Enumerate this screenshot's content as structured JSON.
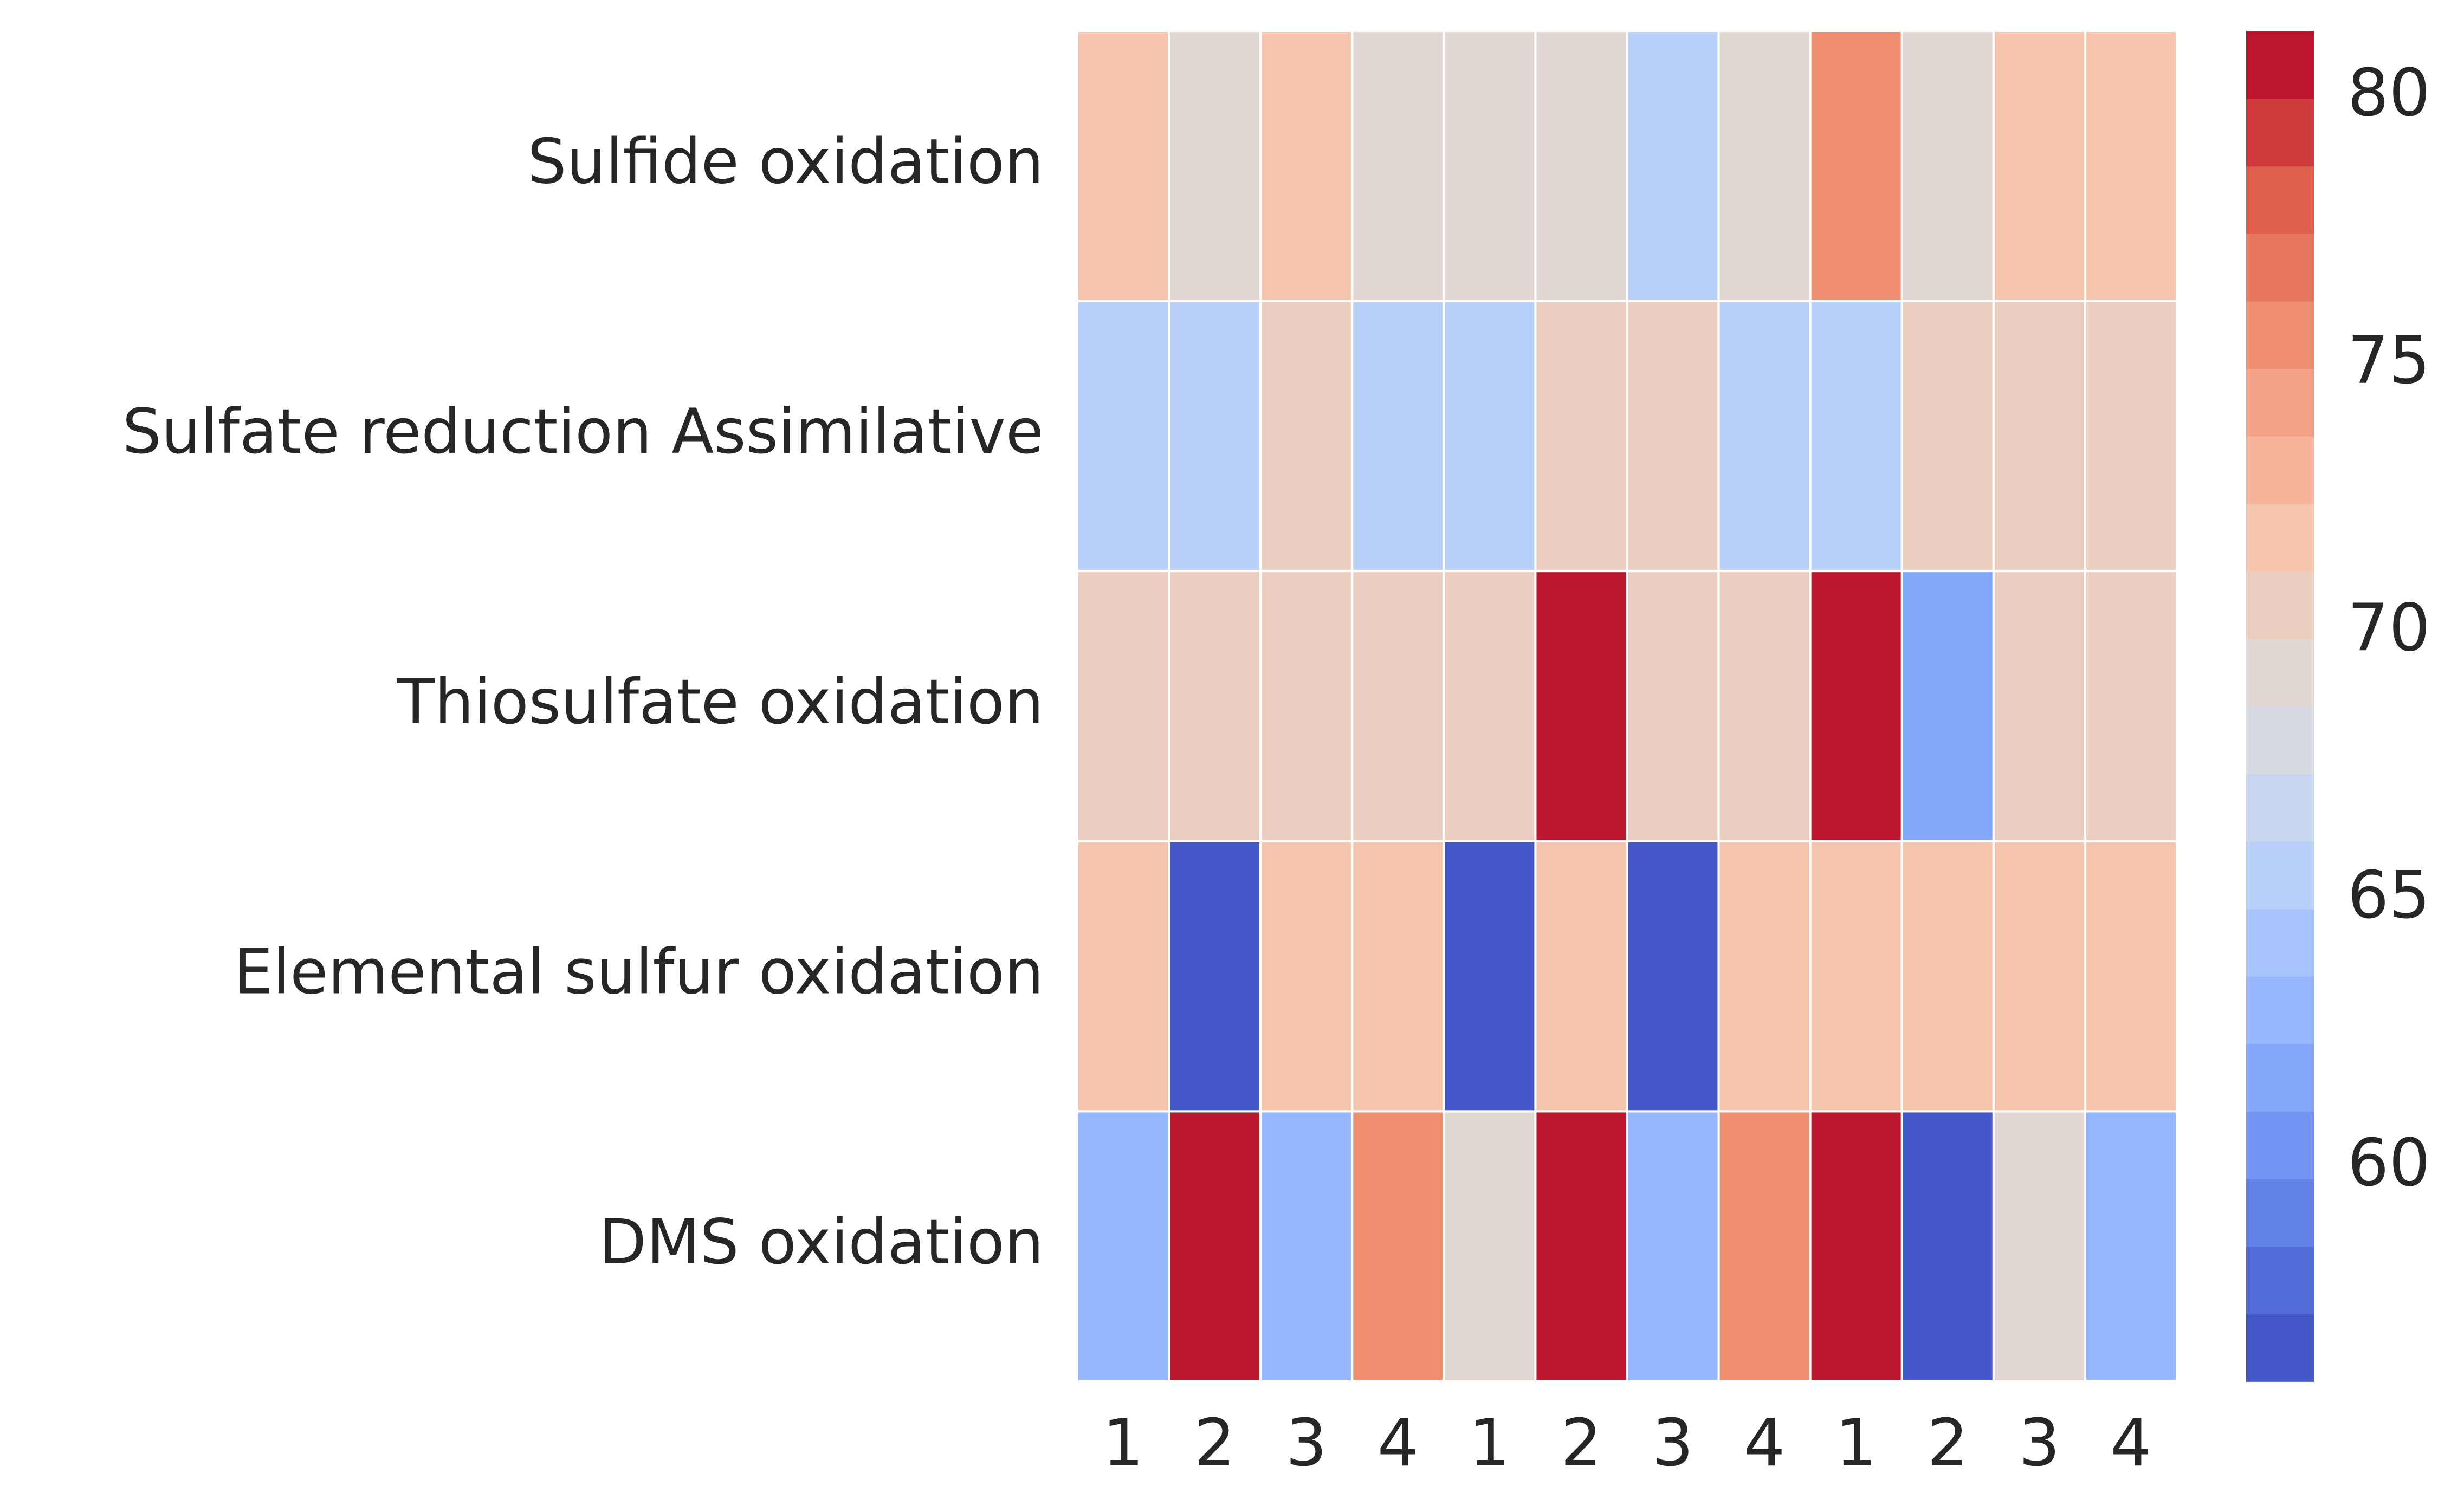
{
  "chart_data": {
    "type": "heatmap",
    "title": "",
    "xlabel": "",
    "ylabel": "",
    "rows": [
      "Sulfide oxidation",
      "Sulfate reduction Assimilative",
      "Thiosulfate oxidation",
      "Elemental sulfur oxidation",
      "DMS oxidation"
    ],
    "columns": [
      "1",
      "2",
      "3",
      "4",
      "1",
      "2",
      "3",
      "4",
      "1",
      "2",
      "3",
      "4"
    ],
    "values": [
      [
        71.8,
        69.8,
        71.8,
        69.8,
        69.8,
        69.8,
        65.0,
        69.8,
        75.4,
        69.8,
        71.8,
        71.8
      ],
      [
        65.0,
        65.0,
        70.8,
        65.0,
        65.0,
        70.8,
        70.8,
        65.0,
        65.0,
        70.8,
        70.8,
        70.8
      ],
      [
        70.8,
        70.8,
        70.8,
        70.8,
        70.8,
        81.0,
        70.8,
        70.8,
        81.0,
        61.5,
        70.8,
        70.8
      ],
      [
        71.8,
        56.5,
        71.8,
        71.8,
        56.5,
        71.8,
        56.5,
        71.8,
        71.8,
        71.8,
        71.8,
        71.8
      ],
      [
        63.5,
        81.0,
        63.5,
        75.4,
        69.8,
        81.0,
        63.5,
        75.4,
        81.0,
        56.5,
        69.8,
        63.5
      ]
    ],
    "colorbar": {
      "vmin": 56.0,
      "vmax": 81.25,
      "levels": 20,
      "ticks": [
        60,
        65,
        70,
        75,
        80
      ],
      "colormap": "coolwarm"
    },
    "grid": false,
    "legend": "colorbar-right"
  }
}
